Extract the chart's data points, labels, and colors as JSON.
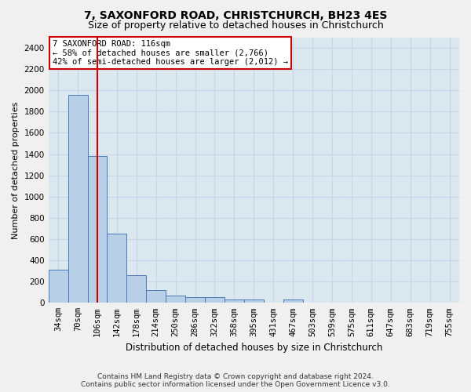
{
  "title": "7, SAXONFORD ROAD, CHRISTCHURCH, BH23 4ES",
  "subtitle": "Size of property relative to detached houses in Christchurch",
  "xlabel": "Distribution of detached houses by size in Christchurch",
  "ylabel": "Number of detached properties",
  "footer_line1": "Contains HM Land Registry data © Crown copyright and database right 2024.",
  "footer_line2": "Contains public sector information licensed under the Open Government Licence v3.0.",
  "categories": [
    "34sqm",
    "70sqm",
    "106sqm",
    "142sqm",
    "178sqm",
    "214sqm",
    "250sqm",
    "286sqm",
    "322sqm",
    "358sqm",
    "395sqm",
    "431sqm",
    "467sqm",
    "503sqm",
    "539sqm",
    "575sqm",
    "611sqm",
    "647sqm",
    "683sqm",
    "719sqm",
    "755sqm"
  ],
  "bar_values": [
    310,
    1960,
    1380,
    650,
    260,
    120,
    70,
    55,
    55,
    30,
    30,
    0,
    30,
    0,
    0,
    0,
    0,
    0,
    0,
    0,
    0
  ],
  "bar_color": "#b8cfe8",
  "bar_edge_color": "#4a7ab5",
  "annotation_line1": "7 SAXONFORD ROAD: 116sqm",
  "annotation_line2": "← 58% of detached houses are smaller (2,766)",
  "annotation_line3": "42% of semi-detached houses are larger (2,012) →",
  "annotation_box_facecolor": "#ffffff",
  "annotation_box_edgecolor": "#cc0000",
  "vline_color": "#cc0000",
  "vline_x": 2.0,
  "ylim_min": 0,
  "ylim_max": 2500,
  "ytick_step": 200,
  "grid_color": "#c8d4e8",
  "bg_color": "#dce8f0",
  "fig_bg_color": "#f0f0f0",
  "title_fontsize": 10,
  "subtitle_fontsize": 9,
  "ylabel_fontsize": 8,
  "xlabel_fontsize": 8.5,
  "tick_fontsize": 7.5,
  "annot_fontsize": 7.5,
  "footer_fontsize": 6.5
}
